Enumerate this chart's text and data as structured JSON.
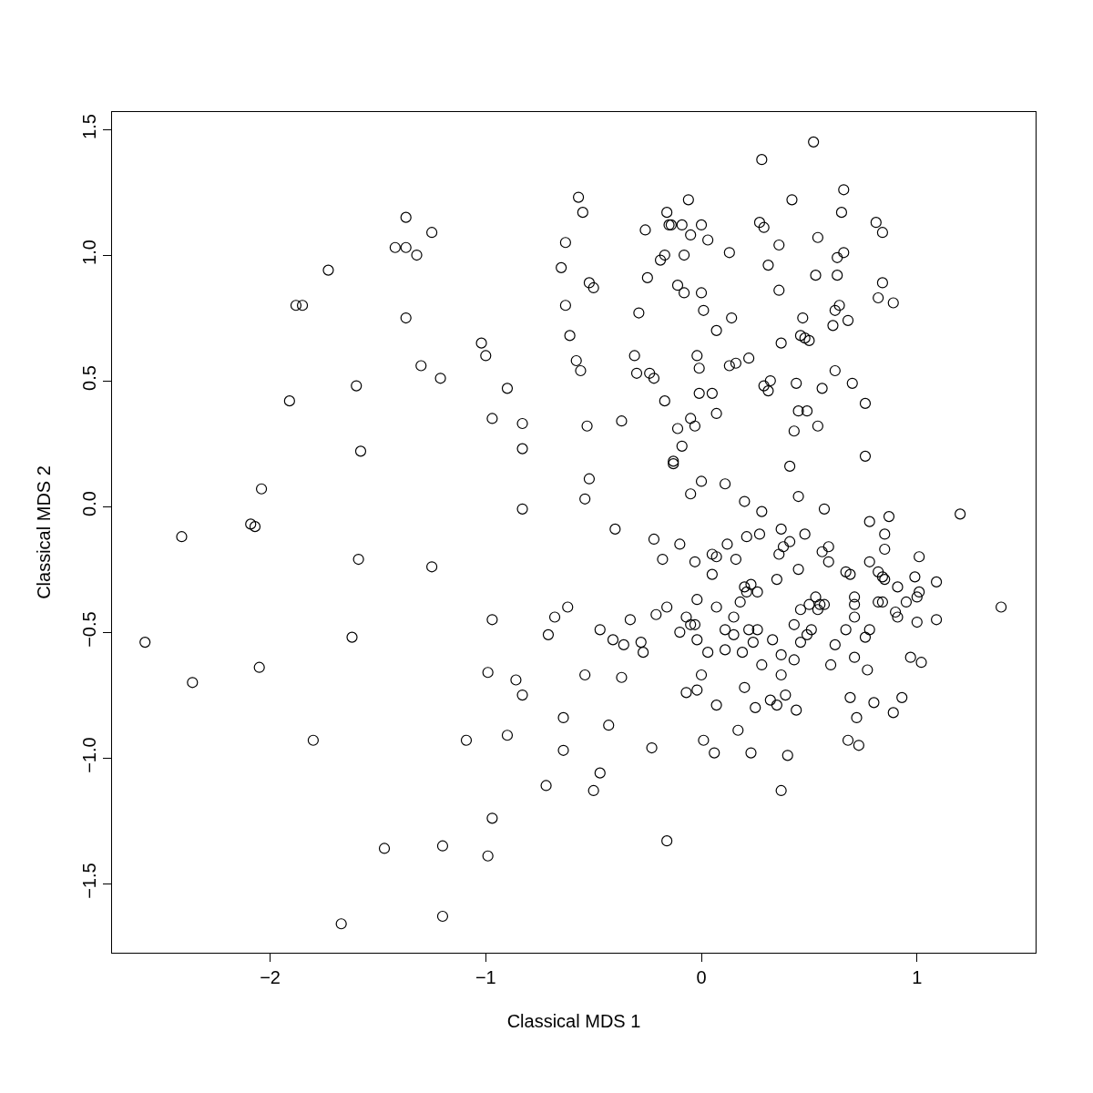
{
  "chart_data": {
    "type": "scatter",
    "xlabel": "Classical MDS 1",
    "ylabel": "Classical MDS 2",
    "color": "#000000",
    "marker": "circle",
    "grid": false,
    "legend": false,
    "xlim": [
      -2.733,
      1.55
    ],
    "ylim": [
      -1.775,
      1.569
    ],
    "xticks": [
      -2,
      -1,
      0,
      1
    ],
    "yticks": [
      -1.5,
      {
        "value": -1,
        "label": "−1.0"
      },
      -0.5,
      {
        "value": 0,
        "label": "0.0"
      },
      0.5,
      {
        "value": 1,
        "label": "1.0"
      },
      1.5
    ],
    "x": [
      -2.58,
      -2.41,
      -2.36,
      -2.09,
      -2.07,
      -2.04,
      -2.05,
      -1.91,
      -1.88,
      -1.85,
      -1.73,
      -1.8,
      -1.67,
      -1.62,
      -1.6,
      -1.59,
      -1.58,
      -1.47,
      -1.42,
      -1.37,
      -1.37,
      -1.37,
      -1.32,
      -1.3,
      -1.25,
      -1.25,
      -1.21,
      -1.2,
      -1.2,
      -1.09,
      -1.02,
      -1.0,
      -0.99,
      -0.99,
      -0.97,
      -0.97,
      -0.97,
      -0.9,
      -0.9,
      -0.86,
      -0.83,
      -0.83,
      -0.83,
      -0.83,
      -0.72,
      -0.71,
      -0.68,
      -0.65,
      -0.63,
      -0.64,
      -0.64,
      -0.63,
      -0.62,
      -0.61,
      -0.58,
      -0.57,
      -0.56,
      -0.55,
      -0.54,
      -0.54,
      -0.53,
      -0.52,
      -0.52,
      -0.5,
      -0.5,
      -0.47,
      -0.47,
      -0.43,
      -0.41,
      -0.4,
      -0.37,
      -0.37,
      -0.36,
      -0.33,
      -0.31,
      -0.3,
      -0.29,
      -0.28,
      -0.27,
      -0.26,
      -0.25,
      -0.24,
      -0.23,
      -0.22,
      -0.22,
      -0.21,
      -0.19,
      -0.18,
      -0.17,
      -0.17,
      -0.16,
      -0.16,
      -0.16,
      -0.15,
      -0.14,
      -0.13,
      -0.13,
      -0.11,
      -0.11,
      -0.09,
      -0.1,
      -0.1,
      -0.09,
      -0.08,
      -0.08,
      -0.07,
      -0.07,
      -0.06,
      -0.05,
      -0.05,
      -0.05,
      -0.05,
      -0.03,
      -0.03,
      -0.03,
      -0.02,
      -0.02,
      -0.02,
      -0.02,
      -0.01,
      -0.01,
      0.0,
      0.0,
      0.0,
      0.0,
      0.01,
      0.01,
      0.03,
      0.03,
      0.05,
      0.05,
      0.05,
      0.06,
      0.07,
      0.07,
      0.07,
      0.07,
      0.07,
      0.11,
      0.11,
      0.11,
      0.12,
      0.13,
      0.13,
      0.14,
      0.15,
      0.15,
      0.16,
      0.16,
      0.17,
      0.18,
      0.19,
      0.2,
      0.2,
      0.2,
      0.21,
      0.21,
      0.22,
      0.22,
      0.23,
      0.23,
      0.24,
      0.25,
      0.26,
      0.26,
      0.27,
      0.27,
      0.28,
      0.28,
      0.29,
      0.28,
      0.29,
      0.31,
      0.31,
      0.32,
      0.32,
      0.33,
      0.35,
      0.35,
      0.36,
      0.36,
      0.36,
      0.37,
      0.37,
      0.37,
      0.37,
      0.37,
      0.38,
      0.39,
      0.4,
      0.41,
      0.41,
      0.42,
      0.43,
      0.43,
      0.43,
      0.44,
      0.44,
      0.45,
      0.45,
      0.45,
      0.46,
      0.46,
      0.46,
      0.47,
      0.48,
      0.48,
      0.49,
      0.49,
      0.5,
      0.5,
      0.51,
      0.52,
      0.53,
      0.53,
      0.54,
      0.54,
      0.54,
      0.55,
      0.56,
      0.56,
      0.57,
      0.57,
      0.59,
      0.59,
      0.6,
      0.61,
      0.62,
      0.62,
      0.62,
      0.63,
      0.63,
      0.64,
      0.65,
      0.66,
      0.66,
      0.67,
      0.67,
      0.68,
      0.68,
      0.69,
      0.69,
      0.7,
      0.71,
      0.71,
      0.71,
      0.71,
      0.72,
      0.73,
      0.76,
      0.76,
      0.76,
      0.77,
      0.78,
      0.78,
      0.78,
      0.8,
      0.81,
      0.82,
      0.82,
      0.82,
      0.84,
      0.84,
      0.84,
      0.84,
      0.85,
      0.85,
      0.85,
      0.87,
      0.89,
      0.89,
      0.9,
      0.91,
      0.91,
      0.93,
      0.95,
      0.97,
      0.99,
      1.0,
      1.0,
      1.01,
      1.01,
      1.02,
      1.09,
      1.09,
      1.2,
      1.39
    ],
    "values": [
      -0.54,
      -0.12,
      -0.7,
      -0.07,
      -0.08,
      0.07,
      -0.64,
      0.42,
      0.8,
      0.8,
      0.94,
      -0.93,
      -1.66,
      -0.52,
      0.48,
      -0.21,
      0.22,
      -1.36,
      1.03,
      1.15,
      1.03,
      0.75,
      1.0,
      0.56,
      -0.24,
      1.09,
      0.51,
      -1.35,
      -1.63,
      -0.93,
      0.65,
      0.6,
      -1.39,
      -0.66,
      -0.45,
      -1.24,
      0.35,
      0.47,
      -0.91,
      -0.69,
      0.23,
      0.33,
      -0.01,
      -0.75,
      -1.11,
      -0.51,
      -0.44,
      0.95,
      1.05,
      -0.84,
      -0.97,
      0.8,
      -0.4,
      0.68,
      0.58,
      1.23,
      0.54,
      1.17,
      -0.67,
      0.03,
      0.32,
      0.11,
      0.89,
      0.87,
      -1.13,
      -0.49,
      -1.06,
      -0.87,
      -0.53,
      -0.09,
      0.34,
      -0.68,
      -0.55,
      -0.45,
      0.6,
      0.53,
      0.77,
      -0.54,
      -0.58,
      1.1,
      0.91,
      0.53,
      -0.96,
      0.51,
      -0.13,
      -0.43,
      0.98,
      -0.21,
      1.0,
      0.42,
      1.17,
      -1.33,
      -0.4,
      1.12,
      1.12,
      0.18,
      0.17,
      0.31,
      0.88,
      1.12,
      -0.15,
      -0.5,
      0.24,
      1.0,
      0.85,
      -0.74,
      -0.44,
      1.22,
      1.08,
      -0.47,
      0.35,
      0.05,
      0.32,
      -0.22,
      -0.47,
      -0.37,
      -0.53,
      0.6,
      -0.73,
      0.55,
      0.45,
      0.85,
      1.12,
      0.1,
      -0.67,
      -0.93,
      0.78,
      1.06,
      -0.58,
      0.45,
      -0.19,
      -0.27,
      -0.98,
      -0.4,
      0.37,
      -0.2,
      -0.79,
      0.7,
      0.09,
      -0.49,
      -0.57,
      -0.15,
      0.56,
      1.01,
      0.75,
      -0.44,
      -0.51,
      0.57,
      -0.21,
      -0.89,
      -0.38,
      -0.58,
      0.02,
      -0.32,
      -0.72,
      -0.34,
      -0.12,
      -0.49,
      0.59,
      -0.98,
      -0.31,
      -0.54,
      -0.8,
      -0.34,
      -0.49,
      -0.11,
      1.13,
      -0.63,
      1.38,
      1.11,
      -0.02,
      0.48,
      0.96,
      0.46,
      0.5,
      -0.77,
      -0.53,
      -0.29,
      -0.79,
      1.04,
      0.86,
      -0.19,
      -0.09,
      0.65,
      -1.13,
      -0.59,
      -0.67,
      -0.16,
      -0.75,
      -0.99,
      -0.14,
      0.16,
      1.22,
      0.3,
      -0.47,
      -0.61,
      0.49,
      -0.81,
      0.38,
      0.04,
      -0.25,
      -0.54,
      -0.41,
      0.68,
      0.75,
      -0.11,
      0.67,
      -0.51,
      0.38,
      0.66,
      -0.39,
      -0.49,
      1.45,
      -0.36,
      0.92,
      1.07,
      0.32,
      -0.41,
      -0.39,
      0.47,
      -0.18,
      -0.01,
      -0.39,
      -0.16,
      -0.22,
      -0.63,
      0.72,
      -0.55,
      0.78,
      0.54,
      0.99,
      0.92,
      0.8,
      1.17,
      1.26,
      1.01,
      -0.26,
      -0.49,
      0.74,
      -0.93,
      -0.27,
      -0.76,
      0.49,
      -0.44,
      -0.39,
      -0.36,
      -0.6,
      -0.84,
      -0.95,
      0.2,
      0.41,
      -0.52,
      -0.65,
      -0.49,
      -0.06,
      -0.22,
      -0.78,
      1.13,
      0.83,
      -0.38,
      -0.26,
      -0.28,
      1.09,
      0.89,
      -0.38,
      -0.17,
      -0.29,
      -0.11,
      -0.04,
      0.81,
      -0.82,
      -0.42,
      -0.44,
      -0.32,
      -0.76,
      -0.38,
      -0.6,
      -0.28,
      -0.36,
      -0.46,
      -0.34,
      -0.2,
      -0.62,
      -0.3,
      -0.45,
      -0.03,
      -0.4
    ]
  }
}
